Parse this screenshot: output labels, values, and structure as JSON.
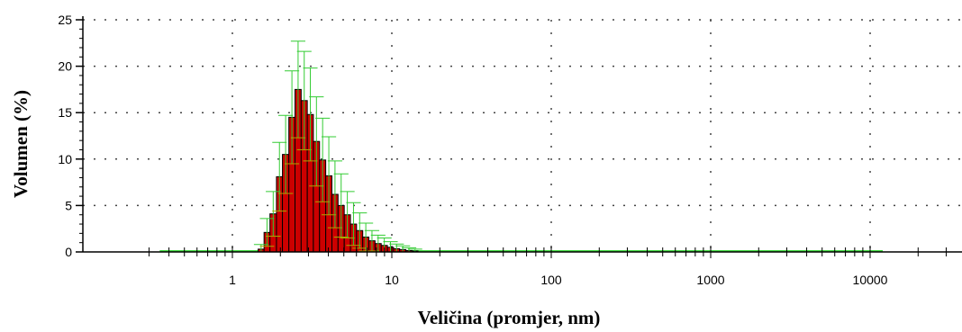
{
  "chart_data": {
    "type": "bar",
    "title": "",
    "xlabel": "Veličina (promjer, nm)",
    "ylabel": "Volumen (%)",
    "x_scale": "log",
    "xlim": [
      0.3,
      30000
    ],
    "ylim": [
      0,
      25
    ],
    "y_ticks": [
      "0",
      "5",
      "10",
      "15",
      "20",
      "25"
    ],
    "x_ticks": [
      {
        "value": 1,
        "label": "1"
      },
      {
        "value": 10,
        "label": "10"
      },
      {
        "value": 100,
        "label": "100"
      },
      {
        "value": 1000,
        "label": "1000"
      },
      {
        "value": 10000,
        "label": "10000"
      }
    ],
    "grid": true,
    "bar_color": "#cc0000",
    "errorbar_color": "#33cc33",
    "bins": [
      {
        "x_start": 1.45,
        "x_end": 1.58,
        "value": 0.3,
        "error": 0.5
      },
      {
        "x_start": 1.58,
        "x_end": 1.72,
        "value": 2.1,
        "error": 1.5
      },
      {
        "x_start": 1.72,
        "x_end": 1.89,
        "value": 4.1,
        "error": 2.4
      },
      {
        "x_start": 1.89,
        "x_end": 2.06,
        "value": 8.1,
        "error": 3.7
      },
      {
        "x_start": 2.06,
        "x_end": 2.26,
        "value": 10.5,
        "error": 4.2
      },
      {
        "x_start": 2.26,
        "x_end": 2.47,
        "value": 14.5,
        "error": 5.0
      },
      {
        "x_start": 2.47,
        "x_end": 2.7,
        "value": 17.5,
        "error": 5.2
      },
      {
        "x_start": 2.7,
        "x_end": 2.95,
        "value": 16.3,
        "error": 5.3
      },
      {
        "x_start": 2.95,
        "x_end": 3.22,
        "value": 14.8,
        "error": 5.0
      },
      {
        "x_start": 3.22,
        "x_end": 3.52,
        "value": 11.9,
        "error": 4.8
      },
      {
        "x_start": 3.52,
        "x_end": 3.85,
        "value": 9.9,
        "error": 4.5
      },
      {
        "x_start": 3.85,
        "x_end": 4.21,
        "value": 8.2,
        "error": 4.2
      },
      {
        "x_start": 4.21,
        "x_end": 4.6,
        "value": 6.2,
        "error": 3.6
      },
      {
        "x_start": 4.6,
        "x_end": 5.03,
        "value": 5.0,
        "error": 3.4
      },
      {
        "x_start": 5.03,
        "x_end": 5.5,
        "value": 4.0,
        "error": 2.5
      },
      {
        "x_start": 5.5,
        "x_end": 6.01,
        "value": 3.0,
        "error": 2.3
      },
      {
        "x_start": 6.01,
        "x_end": 6.57,
        "value": 2.3,
        "error": 1.9
      },
      {
        "x_start": 6.57,
        "x_end": 7.18,
        "value": 1.6,
        "error": 1.5
      },
      {
        "x_start": 7.18,
        "x_end": 7.85,
        "value": 1.2,
        "error": 1.1
      },
      {
        "x_start": 7.85,
        "x_end": 8.58,
        "value": 0.9,
        "error": 0.9
      },
      {
        "x_start": 8.58,
        "x_end": 9.38,
        "value": 0.7,
        "error": 0.8
      },
      {
        "x_start": 9.38,
        "x_end": 10.25,
        "value": 0.5,
        "error": 0.6
      },
      {
        "x_start": 10.25,
        "x_end": 11.2,
        "value": 0.35,
        "error": 0.5
      },
      {
        "x_start": 11.2,
        "x_end": 12.25,
        "value": 0.25,
        "error": 0.4
      },
      {
        "x_start": 12.25,
        "x_end": 13.4,
        "value": 0.15,
        "error": 0.3
      },
      {
        "x_start": 13.4,
        "x_end": 14.6,
        "value": 0.1,
        "error": 0.2
      }
    ]
  }
}
